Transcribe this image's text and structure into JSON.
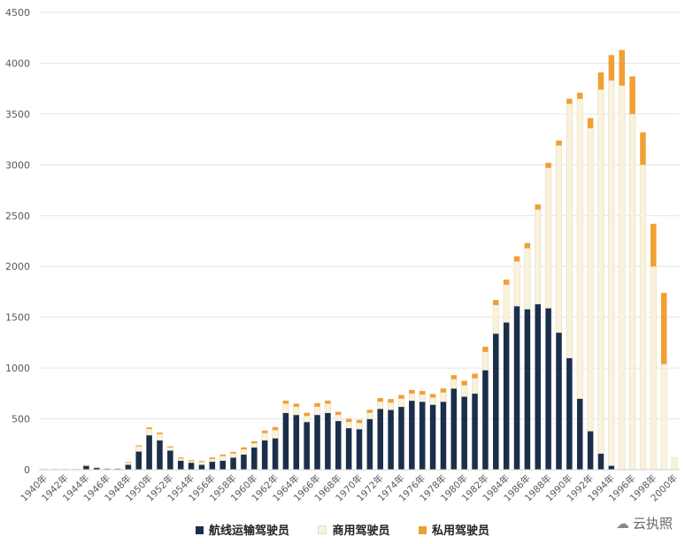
{
  "chart_data": {
    "type": "bar",
    "stacked": true,
    "categories": [
      "1940年",
      "1941年",
      "1942年",
      "1943年",
      "1944年",
      "1945年",
      "1946年",
      "1947年",
      "1948年",
      "1949年",
      "1950年",
      "1951年",
      "1952年",
      "1953年",
      "1954年",
      "1955年",
      "1956年",
      "1957年",
      "1958年",
      "1959年",
      "1960年",
      "1961年",
      "1962年",
      "1963年",
      "1964年",
      "1965年",
      "1966年",
      "1967年",
      "1968年",
      "1969年",
      "1970年",
      "1971年",
      "1972年",
      "1973年",
      "1974年",
      "1975年",
      "1976年",
      "1977年",
      "1978年",
      "1979年",
      "1980年",
      "1981年",
      "1982年",
      "1983年",
      "1984年",
      "1985年",
      "1986年",
      "1987年",
      "1988年",
      "1989年",
      "1990年",
      "1991年",
      "1992年",
      "1993年",
      "1994年",
      "1995年",
      "1996年",
      "1997年",
      "1998年",
      "1999年",
      "2000年"
    ],
    "x_tick_labels": [
      "1940年",
      "1942年",
      "1944年",
      "1946年",
      "1948年",
      "1950年",
      "1952年",
      "1954年",
      "1956年",
      "1958年",
      "1960年",
      "1962年",
      "1964年",
      "1966年",
      "1968年",
      "1970年",
      "1972年",
      "1974年",
      "1976年",
      "1978年",
      "1980年",
      "1982年",
      "1984年",
      "1986年",
      "1988年",
      "1990年",
      "1992年",
      "1994年",
      "1996年",
      "1998年",
      "2000年"
    ],
    "ylim": [
      0,
      4500
    ],
    "y_ticks": [
      0,
      500,
      1000,
      1500,
      2000,
      2500,
      3000,
      3500,
      4000,
      4500
    ],
    "grid": "horizontal",
    "legend_position": "bottom",
    "series": [
      {
        "name": "航线运输驾驶员",
        "color": "#1b2f4a",
        "values": [
          0,
          0,
          0,
          0,
          40,
          20,
          10,
          10,
          50,
          180,
          340,
          290,
          190,
          90,
          70,
          50,
          80,
          90,
          120,
          150,
          220,
          290,
          310,
          560,
          540,
          470,
          540,
          560,
          480,
          410,
          400,
          500,
          600,
          590,
          620,
          680,
          670,
          640,
          670,
          800,
          720,
          750,
          980,
          1340,
          1450,
          1610,
          1580,
          1630,
          1590,
          1350,
          1100,
          700,
          380,
          160,
          40,
          0,
          0,
          0,
          0,
          0,
          0
        ]
      },
      {
        "name": "商用驾驶员",
        "color": "#f9f2dc",
        "values": [
          8,
          8,
          6,
          6,
          6,
          6,
          6,
          6,
          20,
          50,
          60,
          60,
          30,
          20,
          15,
          25,
          25,
          45,
          40,
          50,
          40,
          70,
          80,
          90,
          80,
          60,
          80,
          90,
          60,
          60,
          60,
          60,
          70,
          70,
          80,
          70,
          70,
          70,
          90,
          90,
          110,
          150,
          180,
          280,
          370,
          440,
          600,
          930,
          1380,
          1840,
          2500,
          2950,
          2980,
          3580,
          3790,
          3780,
          3500,
          3000,
          2000,
          1040,
          120
        ]
      },
      {
        "name": "私用驾驶员",
        "color": "#f0a033",
        "values": [
          0,
          0,
          0,
          0,
          0,
          0,
          0,
          0,
          5,
          10,
          15,
          15,
          10,
          10,
          10,
          10,
          15,
          15,
          15,
          20,
          20,
          25,
          30,
          30,
          30,
          30,
          35,
          30,
          30,
          30,
          30,
          30,
          35,
          35,
          35,
          35,
          35,
          35,
          40,
          40,
          45,
          45,
          50,
          50,
          50,
          50,
          50,
          50,
          50,
          50,
          50,
          60,
          100,
          170,
          250,
          350,
          370,
          320,
          420,
          700,
          0
        ]
      }
    ]
  },
  "watermark": {
    "icon": "cloud-icon",
    "text": "云执照"
  }
}
